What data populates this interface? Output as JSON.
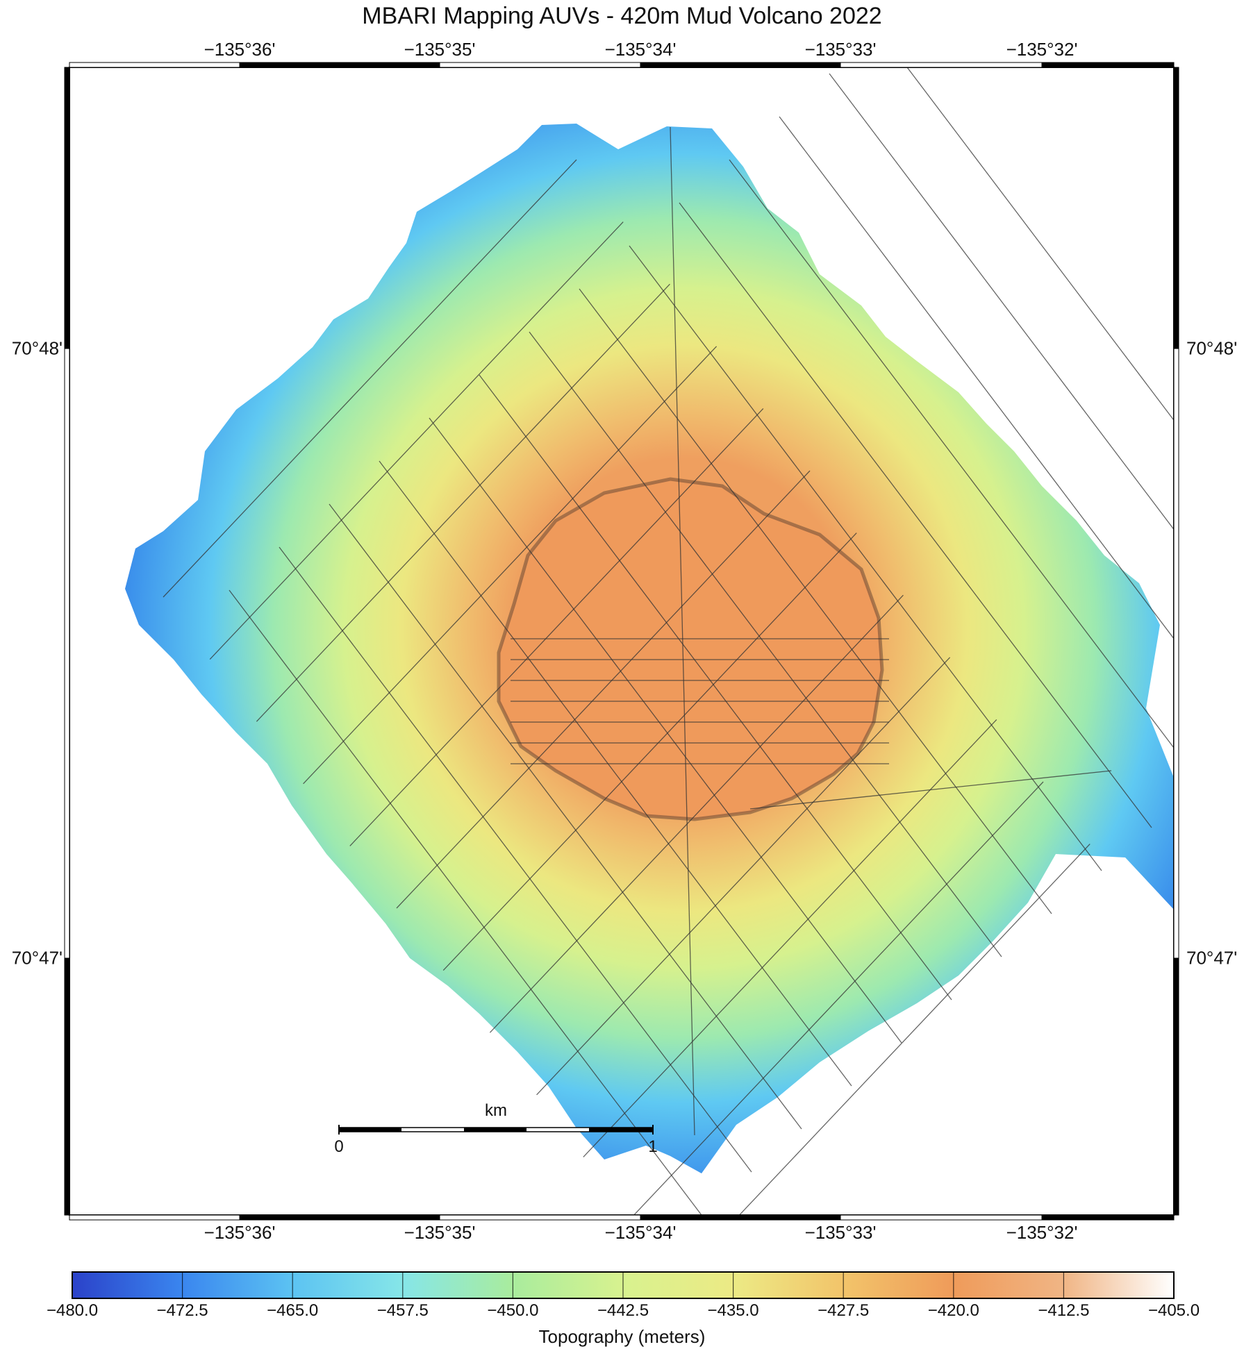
{
  "map": {
    "title": "MBARI Mapping AUVs - 420m Mud Volcano 2022",
    "lon_labels": [
      "−135°36'",
      "−135°35'",
      "−135°34'",
      "−135°33'",
      "−135°32'"
    ],
    "lat_labels": [
      "70°48'",
      "70°47'"
    ],
    "scale_bar": {
      "unit": "km",
      "start": "0",
      "end": "1"
    }
  },
  "colorbar": {
    "title": "Topography (meters)",
    "ticks": [
      "−480.0",
      "−472.5",
      "−465.0",
      "−457.5",
      "−450.0",
      "−442.5",
      "−435.0",
      "−427.5",
      "−420.0",
      "−412.5",
      "−405.0"
    ],
    "range": [
      -480.0,
      -405.0
    ],
    "colors": [
      "#2b42c9",
      "#3a86ef",
      "#5cc3f2",
      "#86e6e8",
      "#a9ec9d",
      "#d8f28f",
      "#ecea85",
      "#f2c46a",
      "#ef9b5a",
      "#f0b585",
      "#ffffff"
    ]
  }
}
